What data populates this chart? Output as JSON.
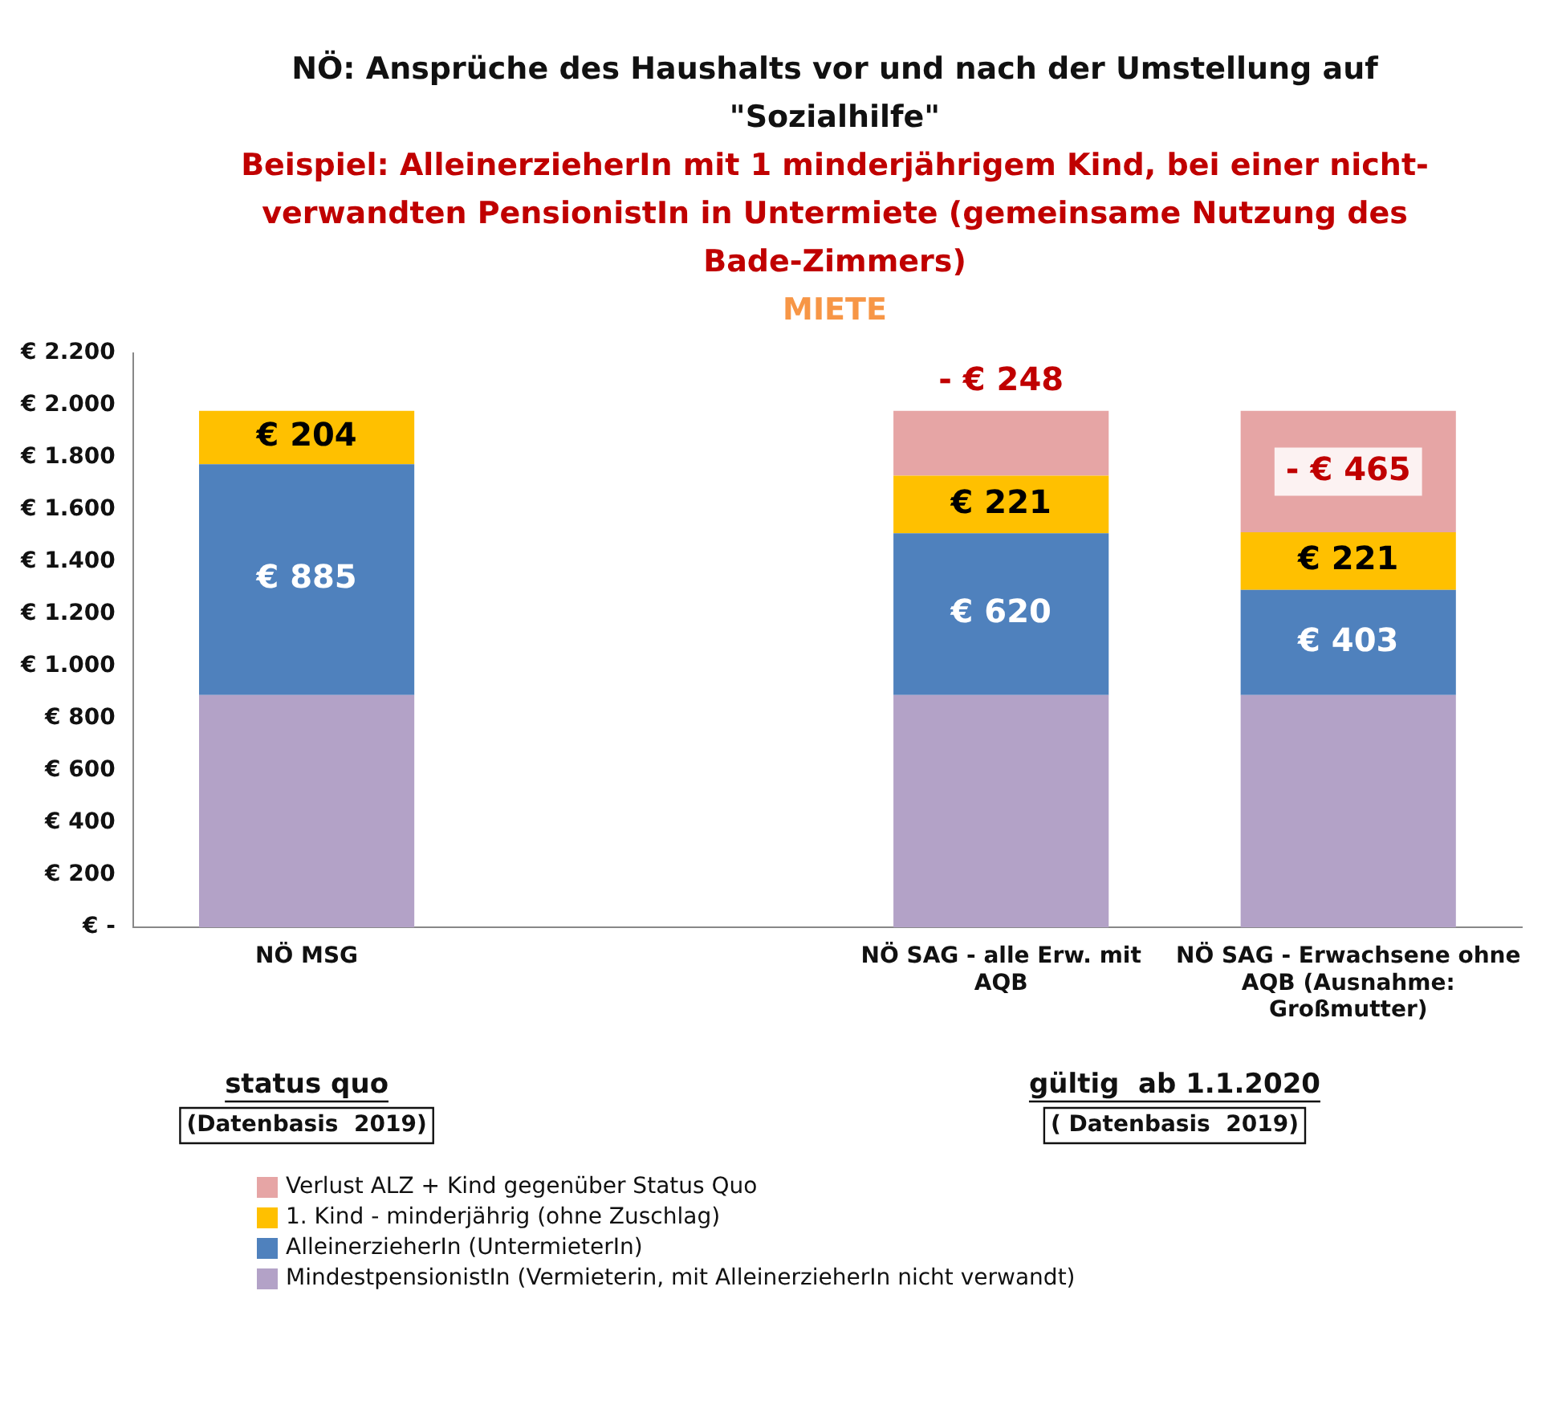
{
  "chart_data": {
    "type": "bar",
    "title": "NÖ: Ansprüche des Haushalts vor und nach der Umstellung auf \"Sozialhilfe\"",
    "subtitle": "Beispiel: AlleinerzieherIn mit 1  minderjährigem Kind,  bei einer nicht-verwandten PensionistIn in Untermiete (gemeinsame Nutzung des Bade-Zimmers)",
    "annotations": [
      "MIETE",
      "status quo",
      "(Datenbasis  2019)",
      "gültig  ab 1.1.2020",
      "( Datenbasis  2019)"
    ],
    "categories": [
      "NÖ MSG",
      null,
      "NÖ SAG - alle Erw. mit AQB",
      "NÖ SAG - Erwachsene ohne AQB (Ausnahme: Großmutter)"
    ],
    "stacked": true,
    "series": [
      {
        "name": "MindestpensionistIn (Vermieterin, mit AlleinerzieherIn nicht verwandt)",
        "color": "#b3a2c7",
        "values": [
          890,
          null,
          890,
          890
        ],
        "value_labels": [
          null,
          null,
          null,
          null
        ]
      },
      {
        "name": "AlleinerzieherIn (UntermieterIn)",
        "color": "#4f81bd",
        "values": [
          885,
          null,
          620,
          403
        ],
        "value_labels": [
          "€ 885",
          null,
          "€ 620",
          "€ 403"
        ]
      },
      {
        "name": "1. Kind - minderjährig (ohne Zuschlag)",
        "color": "#ffc000",
        "values": [
          204,
          null,
          221,
          221
        ],
        "value_labels": [
          "€ 204",
          null,
          "€ 221",
          "€ 221"
        ]
      },
      {
        "name": "Verlust ALZ + Kind gegenüber Status Quo",
        "color": "#e6a5a5",
        "values": [
          null,
          null,
          -248,
          -465
        ],
        "base": [
          null,
          null,
          1979,
          1979
        ],
        "value_labels": [
          null,
          null,
          "- € 248",
          "- € 465"
        ]
      }
    ],
    "ylim": [
      0,
      2200
    ],
    "yticks": [
      {
        "value": 0,
        "label": "€ -"
      },
      {
        "value": 200,
        "label": "€ 200"
      },
      {
        "value": 400,
        "label": "€ 400"
      },
      {
        "value": 600,
        "label": "€ 600"
      },
      {
        "value": 800,
        "label": "€ 800"
      },
      {
        "value": 1000,
        "label": "€ 1.000"
      },
      {
        "value": 1200,
        "label": "€ 1.200"
      },
      {
        "value": 1400,
        "label": "€ 1.400"
      },
      {
        "value": 1600,
        "label": "€ 1.600"
      },
      {
        "value": 1800,
        "label": "€ 1.800"
      },
      {
        "value": 2000,
        "label": "€ 2.000"
      },
      {
        "value": 2200,
        "label": "€ 2.200"
      }
    ],
    "grid": false,
    "legend": "bottom"
  }
}
